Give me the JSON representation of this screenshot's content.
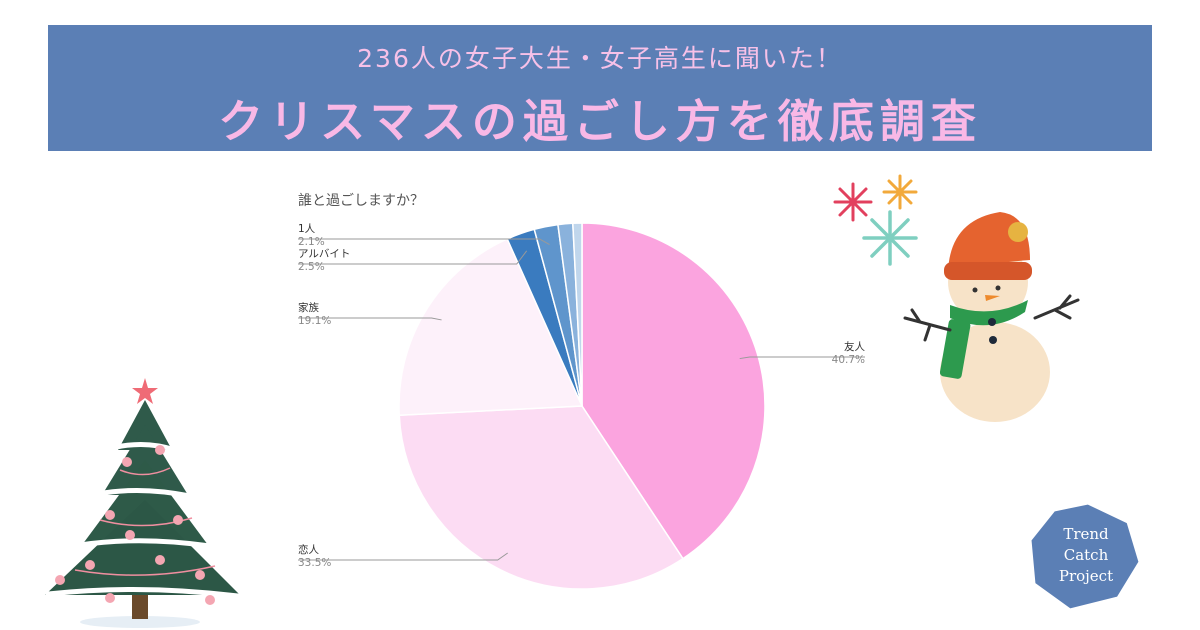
{
  "banner": {
    "subtitle": "236人の女子大生・女子高生に聞いた！",
    "title": "クリスマスの過ごし方を徹底調査",
    "bg_color": "#5b7fb5",
    "text_color": "#f9b8e6"
  },
  "chart_data": {
    "type": "pie",
    "title": "誰と過ごしますか？",
    "slices": [
      {
        "label": "友人",
        "value": 40.7,
        "pct_label": "40.7%",
        "color": "#fba4df"
      },
      {
        "label": "恋人",
        "value": 33.5,
        "pct_label": "33.5%",
        "color": "#fcdcf3"
      },
      {
        "label": "家族",
        "value": 19.1,
        "pct_label": "19.1%",
        "color": "#fdf1fa"
      },
      {
        "label": "アルバイト",
        "value": 2.5,
        "pct_label": "2.5%",
        "color": "#3a7bbf"
      },
      {
        "label": "1人",
        "value": 2.1,
        "pct_label": "2.1%",
        "color": "#5f95cc"
      },
      {
        "label": "",
        "value": 1.3,
        "pct_label": "",
        "color": "#8ab2dc"
      },
      {
        "label": "",
        "value": 0.8,
        "pct_label": "",
        "color": "#c0d6ec"
      }
    ],
    "start_angle_deg": 0,
    "direction": "clockwise",
    "legend": "none"
  },
  "decorations": {
    "tree": "christmas-tree-illustration",
    "snowman": "snowman-illustration",
    "snowflakes": "snowflakes-illustration"
  },
  "badge": {
    "line1": "Trend",
    "line2": "Catch",
    "line3": "Project",
    "color": "#5b7fb5"
  }
}
